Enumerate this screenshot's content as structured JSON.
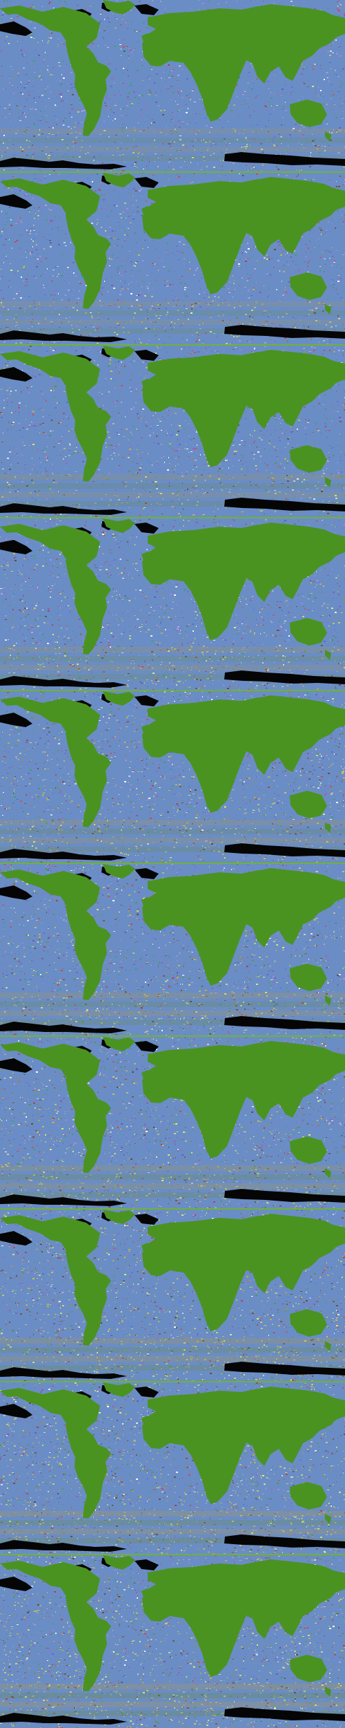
{
  "page": {
    "kind": "stacked world-map frames",
    "frame_count": 10,
    "background_color": "#3f8a1d"
  },
  "colors": {
    "land": "#4a9321",
    "ice_shadow": "#050505",
    "ocean_noise": [
      "#8a72d0",
      "#5f5bc2",
      "#ad88df",
      "#a16ad2",
      "#6b8ee0",
      "#9d4f9b",
      "#4e7ed7",
      "#b3a8e7",
      "#ffffff",
      "#37a45a",
      "#d5434a"
    ],
    "southern_noise": [
      "#c9b43f",
      "#9f8b45",
      "#d1c35e",
      "#ad3f3a",
      "#5d923c",
      "#e6ee72",
      "#9065b7",
      "#6c4730",
      "#c9c85a",
      "#d7d98b"
    ]
  },
  "frames": [
    {
      "id": 1,
      "ocean_profile": "violet",
      "south_band_intensity": 0.72
    },
    {
      "id": 2,
      "ocean_profile": "violet",
      "south_band_intensity": 0.78
    },
    {
      "id": 3,
      "ocean_profile": "violet-gold",
      "south_band_intensity": 0.84
    },
    {
      "id": 4,
      "ocean_profile": "violet-gold",
      "south_band_intensity": 0.86
    },
    {
      "id": 5,
      "ocean_profile": "gold",
      "south_band_intensity": 0.9
    },
    {
      "id": 6,
      "ocean_profile": "gold",
      "south_band_intensity": 0.94
    },
    {
      "id": 7,
      "ocean_profile": "gold",
      "south_band_intensity": 0.98
    },
    {
      "id": 8,
      "ocean_profile": "olive-gold",
      "south_band_intensity": 1.0
    },
    {
      "id": 9,
      "ocean_profile": "olive-gold",
      "south_band_intensity": 1.0
    },
    {
      "id": 10,
      "ocean_profile": "olive-gold",
      "south_band_intensity": 1.0
    }
  ]
}
